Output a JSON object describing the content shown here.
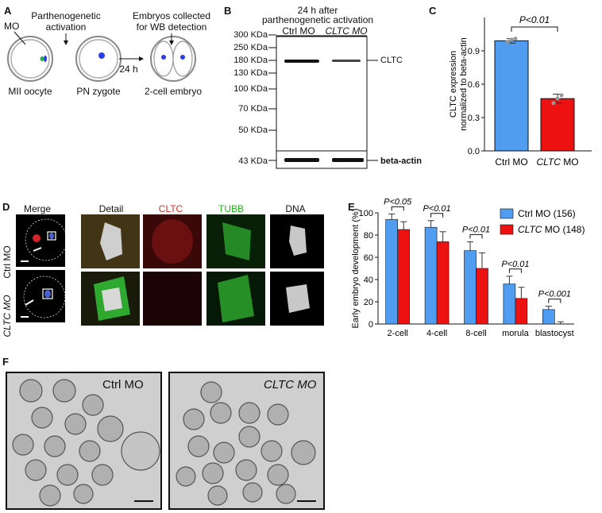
{
  "panel_labels": {
    "a": "A",
    "b": "B",
    "c": "C",
    "d": "D",
    "e": "E",
    "f": "F"
  },
  "panel_a": {
    "mo": "MO",
    "activation": [
      "Parthenogenetic",
      "activation"
    ],
    "collected": [
      "Embryos collected",
      "for WB detection"
    ],
    "time": "24 h",
    "stages": [
      "MII oocyte",
      "PN zygote",
      "2-cell embryo"
    ]
  },
  "panel_b": {
    "header": [
      "24 h after",
      "parthenogenetic activation"
    ],
    "lanes": [
      "Ctrl MO",
      "CLTC MO"
    ],
    "markers": [
      "300 KDa",
      "250 KDa",
      "180 KDa",
      "130 KDa",
      "100 KDa",
      "70 KDa",
      "50 KDa",
      "43 KDa"
    ],
    "band_labels": [
      "CLTC",
      "beta-actin"
    ]
  },
  "panel_d": {
    "columns": [
      "Merge",
      "Detail",
      "CLTC",
      "TUBB",
      "DNA"
    ],
    "column_colors": [
      "#111111",
      "#111111",
      "#e8261f",
      "#21b41e",
      "#111111"
    ],
    "rows": [
      "Ctrl MO",
      "CLTC MO"
    ]
  },
  "panel_f": {
    "labels": [
      "Ctrl MO",
      "CLTC MO"
    ]
  },
  "chart_data": [
    {
      "type": "bar",
      "panel": "C",
      "categories": [
        "Ctrl MO",
        "CLTC MO"
      ],
      "values": [
        0.99,
        0.47
      ],
      "errors": [
        0.02,
        0.04
      ],
      "points": [
        [
          0.98,
          1.0,
          1.01
        ],
        [
          0.43,
          0.47,
          0.5
        ]
      ],
      "colors": [
        "#4f9cf0",
        "#ee1111"
      ],
      "ylabel": "CLTC expression normalized to beta-actin",
      "ylim": [
        0,
        1.2
      ],
      "yticks": [
        "0.0",
        "0.3",
        "0.6",
        "0.9"
      ],
      "annotation": "P<0.01"
    },
    {
      "type": "bar",
      "panel": "E",
      "categories": [
        "2-cell",
        "4-cell",
        "8-cell",
        "morula",
        "blastocyst"
      ],
      "series": [
        {
          "name": "Ctrl MO (156)",
          "values": [
            94,
            87,
            66,
            36,
            13
          ],
          "errors": [
            5,
            6,
            8,
            7,
            3
          ],
          "color": "#4f9cf0"
        },
        {
          "name": "CLTC MO (148)",
          "values": [
            85,
            74,
            50,
            23,
            0
          ],
          "errors": [
            7,
            9,
            14,
            10,
            2
          ],
          "color": "#ee1111"
        }
      ],
      "ylabel": "Early embryo development (%)",
      "ylim": [
        0,
        100
      ],
      "yticks": [
        "0",
        "20",
        "40",
        "60",
        "80",
        "100"
      ],
      "annotations": [
        "P<0.05",
        "P<0.01",
        "P<0.01",
        "P<0.01",
        "P<0.001"
      ],
      "legend": "top-right"
    }
  ]
}
